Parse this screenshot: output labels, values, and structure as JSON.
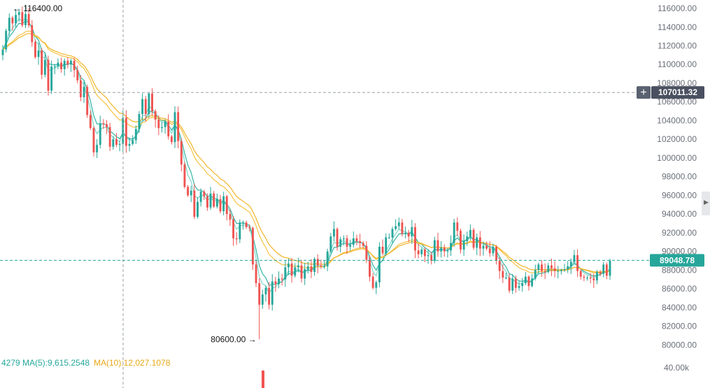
{
  "chart_data": {
    "type": "candlestick",
    "ylim": [
      79500,
      116900
    ],
    "y_ticks": [
      80000,
      82000,
      84000,
      86000,
      88000,
      90000,
      92000,
      94000,
      96000,
      98000,
      100000,
      102000,
      104000,
      106000,
      108000,
      110000,
      112000,
      114000,
      116000
    ],
    "y_tick_labels": [
      "80000.00",
      "82000.00",
      "84000.00",
      "86000.00",
      "88000.00",
      "90000.00",
      "92000.00",
      "94000.00",
      "96000.00",
      "98000.00",
      "100000.00",
      "102000.00",
      "104000.00",
      "106000.00",
      "108000.00",
      "110000.00",
      "112000.00",
      "114000.00",
      "116000.00"
    ],
    "crosshair_price": "107011.32",
    "last_price": "89048.78",
    "high_label": "116400.00",
    "low_label": "80600.00",
    "up_color": "#26a69a",
    "down_color": "#ef5350",
    "ma_colors": [
      "#7fd6c8",
      "#33b5a5",
      "#f5c243",
      "#f0b429"
    ],
    "closes": [
      111600,
      113600,
      115000,
      114400,
      115300,
      115600,
      114200,
      115400,
      114200,
      112400,
      110800,
      111500,
      108900,
      110500,
      107200,
      109800,
      109800,
      110200,
      109500,
      110400,
      110000,
      110400,
      109400,
      108300,
      106500,
      107600,
      104600,
      103200,
      100600,
      101400,
      103700,
      103600,
      103300,
      101200,
      102000,
      101400,
      101500,
      104300,
      101300,
      101500,
      101900,
      103100,
      104700,
      106300,
      104700,
      106900,
      105000,
      104100,
      103200,
      103300,
      103900,
      102300,
      101700,
      104900,
      101800,
      99300,
      96900,
      96000,
      96500,
      93700,
      95300,
      96400,
      95900,
      94700,
      96200,
      94800,
      95600,
      94300,
      95900,
      94000,
      93400,
      91400,
      91300,
      93100,
      93100,
      92600,
      92500,
      88600,
      86600,
      84300,
      85400,
      86100,
      84300,
      86800,
      86500,
      87100,
      87000,
      88300,
      88700,
      87400,
      88300,
      88500,
      87100,
      88100,
      88400,
      87800,
      89200,
      88500,
      88400,
      88400,
      90000,
      91600,
      92400,
      90500,
      91300,
      91400,
      90500,
      90700,
      91400,
      91100,
      90900,
      90600,
      89100,
      87300,
      86100,
      86700,
      90500,
      89800,
      91500,
      91500,
      92400,
      92700,
      93100,
      91900,
      92000,
      91600,
      92600,
      90100,
      89700,
      90200,
      89500,
      89600,
      89000,
      91200,
      90000,
      90400,
      90000,
      90100,
      90900,
      93100,
      92200,
      90200,
      91100,
      91600,
      92300,
      90400,
      91500,
      90300,
      90600,
      90300,
      89800,
      90500,
      89000,
      87900,
      87200,
      87200,
      85800,
      87100,
      86100,
      86300,
      86600,
      87300,
      86300,
      87100,
      88000,
      88600,
      87900,
      87800,
      88500,
      88200,
      87900,
      87900,
      88000,
      88100,
      88400,
      88900,
      89600,
      87900,
      87300,
      87200,
      87200,
      87100,
      86900,
      87800,
      87600,
      88600,
      87400,
      89000
    ],
    "ma_labels": [
      {
        "text": "4279",
        "color": "#26a69a"
      },
      {
        "text": "MA(5):9,615.2548",
        "color": "#26a69a"
      },
      {
        "text": "MA(10):12,027.1078",
        "color": "#e6a817"
      }
    ],
    "volume_axis_label": "40.00k"
  }
}
